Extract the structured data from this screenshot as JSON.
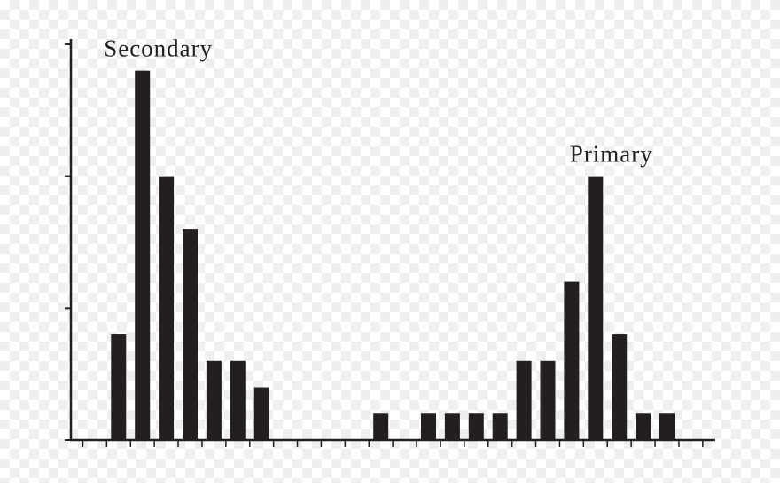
{
  "chart_data": {
    "type": "bar",
    "categories": [
      null,
      null,
      null,
      null,
      null,
      null,
      null,
      null,
      null,
      null,
      null,
      null,
      null,
      null,
      null,
      null,
      null,
      null,
      null,
      null,
      null,
      null,
      null,
      null
    ],
    "values": [
      4,
      14,
      10,
      8,
      3,
      3,
      2,
      0,
      0,
      0,
      0,
      1,
      0,
      1,
      1,
      1,
      1,
      3,
      3,
      6,
      10,
      4,
      1,
      1
    ],
    "color": "#231f20",
    "ylim": [
      0,
      15.2
    ],
    "yticks": [
      0,
      5,
      10,
      15
    ],
    "annotations": [
      {
        "text": "Secondary",
        "index": 1
      },
      {
        "text": "Primary",
        "index": 20
      }
    ]
  }
}
